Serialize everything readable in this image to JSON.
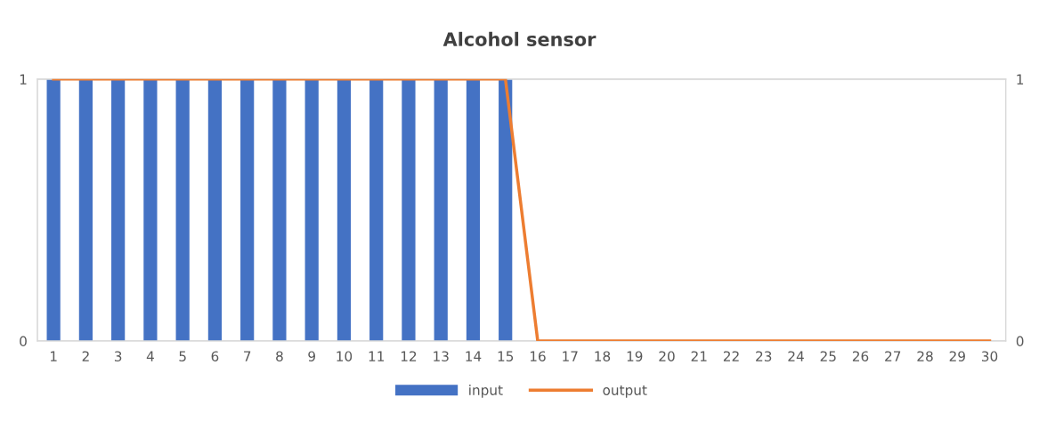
{
  "chart_data": {
    "type": "bar",
    "title": "Alcohol sensor",
    "categories": [
      "1",
      "2",
      "3",
      "4",
      "5",
      "6",
      "7",
      "8",
      "9",
      "10",
      "11",
      "12",
      "13",
      "14",
      "15",
      "16",
      "17",
      "18",
      "19",
      "20",
      "21",
      "22",
      "23",
      "24",
      "25",
      "26",
      "27",
      "28",
      "29",
      "30"
    ],
    "series": [
      {
        "name": "input",
        "color": "#4472c4",
        "values": [
          1,
          1,
          1,
          1,
          1,
          1,
          1,
          1,
          1,
          1,
          1,
          1,
          1,
          1,
          1,
          0,
          0,
          0,
          0,
          0,
          0,
          0,
          0,
          0,
          0,
          0,
          0,
          0,
          0,
          0
        ]
      },
      {
        "name": "output",
        "type": "line",
        "axis": "y2",
        "color": "#ed7d31",
        "values": [
          1,
          1,
          1,
          1,
          1,
          1,
          1,
          1,
          1,
          1,
          1,
          1,
          1,
          1,
          1,
          0,
          0,
          0,
          0,
          0,
          0,
          0,
          0,
          0,
          0,
          0,
          0,
          0,
          0,
          0
        ]
      }
    ],
    "ylim": [
      0,
      1
    ],
    "yticks": [
      0,
      1
    ],
    "y2lim": [
      0,
      1
    ],
    "y2ticks": [
      0,
      1
    ],
    "grid": "y",
    "legend": "bottom",
    "marker": "none",
    "line_style": "solid"
  }
}
